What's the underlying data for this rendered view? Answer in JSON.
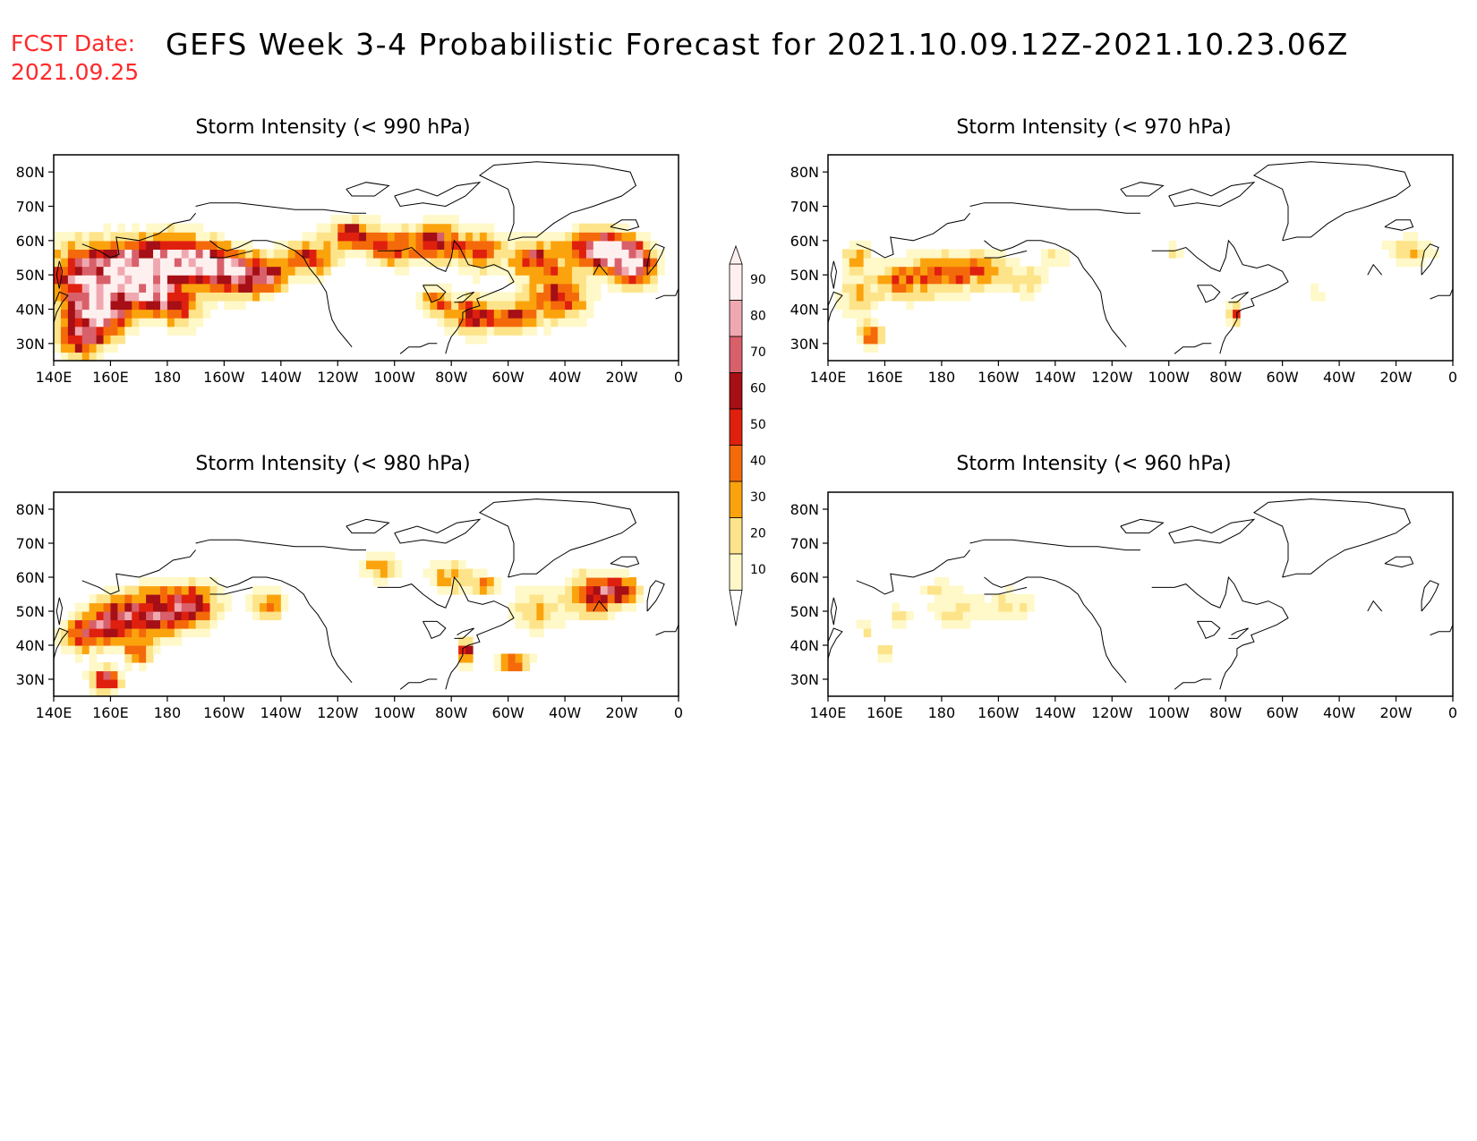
{
  "header": {
    "fcst_label": "FCST Date:",
    "fcst_date": "2021.09.25",
    "title": "GEFS Week 3-4 Probabilistic Forecast for 2021.10.09.12Z-2021.10.23.06Z"
  },
  "axes": {
    "lon_labels": [
      "140E",
      "160E",
      "180",
      "160W",
      "140W",
      "120W",
      "100W",
      "80W",
      "60W",
      "40W",
      "20W",
      "0"
    ],
    "lat_labels": [
      "80N",
      "70N",
      "60N",
      "50N",
      "40N",
      "30N"
    ]
  },
  "colorbar": {
    "labels": [
      "90",
      "80",
      "70",
      "60",
      "50",
      "40",
      "30",
      "20",
      "10"
    ],
    "colors": [
      "#fff0f0",
      "#f0a8b0",
      "#d8606a",
      "#a50f15",
      "#e0200e",
      "#f46a0a",
      "#fba30d",
      "#fde48a",
      "#fff8c8"
    ]
  },
  "panels": [
    {
      "id": "p990",
      "title": "Storm Intensity (< 990 hPa)",
      "intensity": 1.0
    },
    {
      "id": "p970",
      "title": "Storm Intensity (< 970 hPa)",
      "intensity": 0.38
    },
    {
      "id": "p980",
      "title": "Storm Intensity (< 980 hPa)",
      "intensity": 0.62
    },
    {
      "id": "p960",
      "title": "Storm Intensity (< 960 hPa)",
      "intensity": 0.22
    }
  ]
}
